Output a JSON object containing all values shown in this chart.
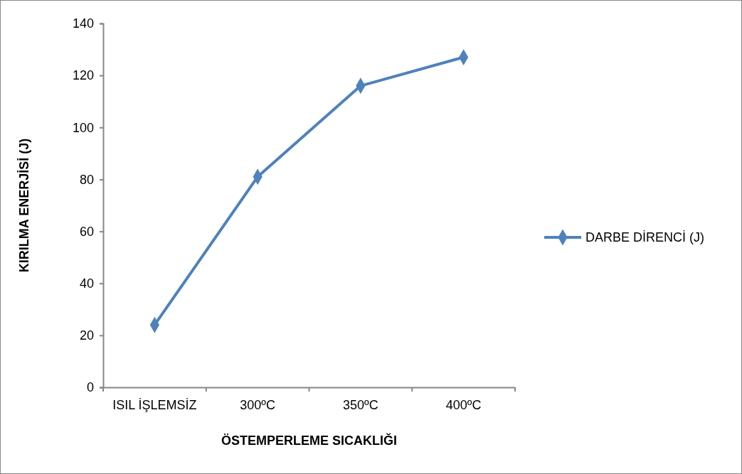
{
  "chart_data": {
    "type": "line",
    "xlabel": "ÖSTEMPERLEME SICAKLIĞI",
    "ylabel": "KIRILMA ENERJİSİ (J)",
    "categories": [
      "ISIL İŞLEMSİZ",
      "300ºC",
      "350ºC",
      "400ºC"
    ],
    "series": [
      {
        "name": "DARBE DİRENCİ (J)",
        "color": "#4f81bd",
        "values": [
          24,
          81,
          116,
          127
        ]
      }
    ],
    "ylim": [
      0,
      140
    ],
    "yticks": [
      0,
      20,
      40,
      60,
      80,
      100,
      120,
      140
    ],
    "grid": false,
    "legend": "right",
    "marker": "diamond",
    "line_style": "solid"
  }
}
